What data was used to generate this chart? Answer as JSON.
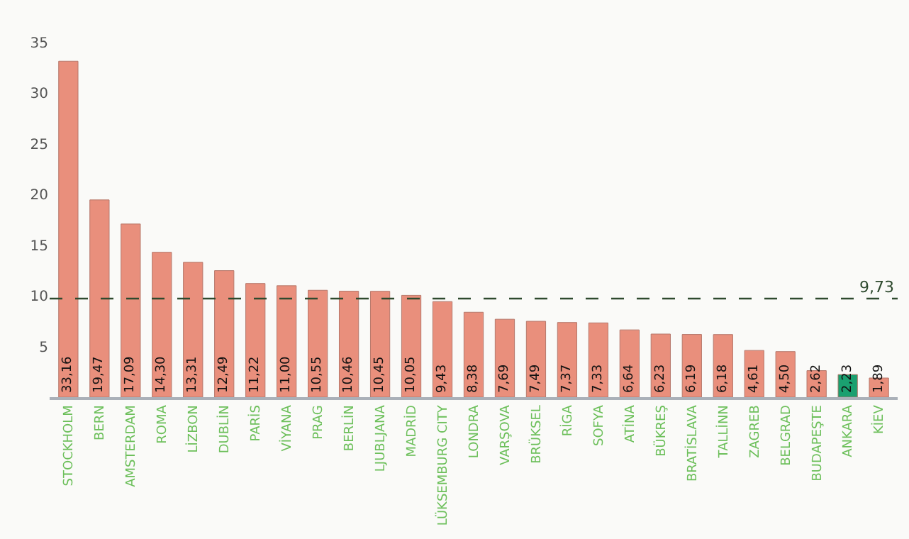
{
  "chart_data": {
    "type": "bar",
    "categories": [
      "STOCKHOLM",
      "BERN",
      "AMSTERDAM",
      "ROMA",
      "LİZBON",
      "DUBLİN",
      "PARİS",
      "VİYANA",
      "PRAG",
      "BERLİN",
      "LJUBLJANA",
      "MADRİD",
      "LÜKSEMBURG CITY",
      "LONDRA",
      "VARŞOVA",
      "BRÜKSEL",
      "RİGA",
      "SOFYA",
      "ATİNA",
      "BÜKREŞ",
      "BRATİSLAVA",
      "TALLİNN",
      "ZAGREB",
      "BELGRAD",
      "BUDAPEŞTE",
      "ANKARA",
      "KİEV"
    ],
    "values": [
      33.16,
      19.47,
      17.09,
      14.3,
      13.31,
      12.49,
      11.22,
      11.0,
      10.55,
      10.46,
      10.45,
      10.05,
      9.43,
      8.38,
      7.69,
      7.49,
      7.37,
      7.33,
      6.64,
      6.23,
      6.19,
      6.18,
      4.61,
      4.5,
      2.62,
      2.23,
      1.89
    ],
    "value_labels": [
      "33,16",
      "19,47",
      "17,09",
      "14,30",
      "13,31",
      "12,49",
      "11,22",
      "11,00",
      "10,55",
      "10,46",
      "10,45",
      "10,05",
      "9,43",
      "8,38",
      "7,69",
      "7,49",
      "7,37",
      "7,33",
      "6,64",
      "6,23",
      "6,19",
      "6,18",
      "4,61",
      "4,50",
      "2,62",
      "2,23",
      "1,89"
    ],
    "colors": [
      "#e98f7c",
      "#e98f7c",
      "#e98f7c",
      "#e98f7c",
      "#e98f7c",
      "#e98f7c",
      "#e98f7c",
      "#e98f7c",
      "#e98f7c",
      "#e98f7c",
      "#e98f7c",
      "#e98f7c",
      "#e98f7c",
      "#e98f7c",
      "#e98f7c",
      "#e98f7c",
      "#e98f7c",
      "#e98f7c",
      "#e98f7c",
      "#e98f7c",
      "#e98f7c",
      "#e98f7c",
      "#e98f7c",
      "#e98f7c",
      "#e98f7c",
      "#1aa070",
      "#e98f7c"
    ],
    "ylim": [
      0,
      35
    ],
    "yticks": [
      5,
      10,
      15,
      20,
      25,
      30,
      35
    ],
    "grid": false,
    "ref_lines": [
      {
        "axis": "y",
        "value": 9.73,
        "label": "9,73",
        "color": "#2e4a2e",
        "line_style": "dashed"
      }
    ]
  }
}
